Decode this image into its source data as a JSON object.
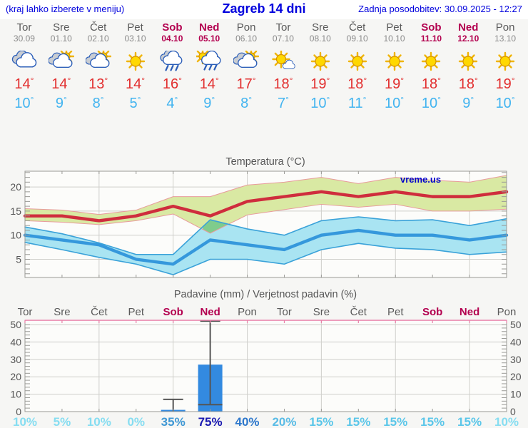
{
  "header": {
    "left_note": "(kraj lahko izberete v meniju)",
    "title": "Zagreb 14 dni",
    "updated": "Zadnja posodobitev: 30.09.2025 - 12:27"
  },
  "colors": {
    "accent_blue": "#0000dd",
    "tmax_red": "#e22e2e",
    "tmin_blue": "#42b4f0",
    "weekend": "#b3004f",
    "weekday": "#5a5a5a",
    "date_gray": "#8a8a8a",
    "watermark_blue": "#0000cc"
  },
  "days": [
    {
      "name": "Tor",
      "date": "30.09",
      "weekend": false,
      "icon": "cloudy",
      "tmax": 14,
      "tmin": 10,
      "precip_prob": 10
    },
    {
      "name": "Sre",
      "date": "01.10",
      "weekend": false,
      "icon": "partly",
      "tmax": 14,
      "tmin": 9,
      "precip_prob": 5
    },
    {
      "name": "Čet",
      "date": "02.10",
      "weekend": false,
      "icon": "partly",
      "tmax": 13,
      "tmin": 8,
      "precip_prob": 10
    },
    {
      "name": "Pet",
      "date": "03.10",
      "weekend": false,
      "icon": "sunny",
      "tmax": 14,
      "tmin": 5,
      "precip_prob": 0
    },
    {
      "name": "Sob",
      "date": "04.10",
      "weekend": true,
      "icon": "rain",
      "tmax": 16,
      "tmin": 4,
      "precip_prob": 35
    },
    {
      "name": "Ned",
      "date": "05.10",
      "weekend": true,
      "icon": "sun-rain",
      "tmax": 14,
      "tmin": 9,
      "precip_prob": 75
    },
    {
      "name": "Pon",
      "date": "06.10",
      "weekend": false,
      "icon": "partly",
      "tmax": 17,
      "tmin": 8,
      "precip_prob": 40
    },
    {
      "name": "Tor",
      "date": "07.10",
      "weekend": false,
      "icon": "mostly-sunny",
      "tmax": 18,
      "tmin": 7,
      "precip_prob": 20
    },
    {
      "name": "Sre",
      "date": "08.10",
      "weekend": false,
      "icon": "sunny",
      "tmax": 19,
      "tmin": 10,
      "precip_prob": 15
    },
    {
      "name": "Čet",
      "date": "09.10",
      "weekend": false,
      "icon": "sunny",
      "tmax": 18,
      "tmin": 11,
      "precip_prob": 15
    },
    {
      "name": "Pet",
      "date": "10.10",
      "weekend": false,
      "icon": "sunny",
      "tmax": 19,
      "tmin": 10,
      "precip_prob": 15
    },
    {
      "name": "Sob",
      "date": "11.10",
      "weekend": true,
      "icon": "sunny",
      "tmax": 18,
      "tmin": 10,
      "precip_prob": 15
    },
    {
      "name": "Ned",
      "date": "12.10",
      "weekend": true,
      "icon": "sunny",
      "tmax": 18,
      "tmin": 9,
      "precip_prob": 15
    },
    {
      "name": "Pon",
      "date": "13.10",
      "weekend": false,
      "icon": "sunny",
      "tmax": 19,
      "tmin": 10,
      "precip_prob": 10
    }
  ],
  "chart_data": [
    {
      "type": "line",
      "title": "Temperatura (°C)",
      "watermark": "vreme.us",
      "categories": [
        "Tor",
        "Sre",
        "Čet",
        "Pet",
        "Sob",
        "Ned",
        "Pon",
        "Tor",
        "Sre",
        "Čet",
        "Pet",
        "Sob",
        "Ned",
        "Pon"
      ],
      "yticks": [
        5,
        10,
        15,
        20
      ],
      "ylim": [
        1.2,
        23.3
      ],
      "grid": true,
      "series": [
        {
          "name": "max-temperature",
          "color": "#cf2d3d",
          "values": [
            14,
            14,
            13,
            14,
            16,
            14,
            17,
            18,
            19,
            18,
            19,
            18,
            18,
            19
          ],
          "band_upper": [
            15.5,
            15.2,
            14.3,
            15.2,
            18.0,
            18.0,
            20.4,
            21.0,
            22.0,
            20.7,
            22.0,
            21.4,
            21.0,
            22.4
          ],
          "band_lower": [
            13.0,
            12.7,
            12.2,
            13.0,
            14.4,
            10.4,
            14.2,
            15.3,
            16.4,
            15.8,
            16.4,
            15.0,
            15.0,
            15.4
          ],
          "band_fill": "#d9e9a3",
          "band_edge": "#e89b9b"
        },
        {
          "name": "min-temperature",
          "color": "#3598dc",
          "values": [
            10,
            9,
            8,
            5,
            4,
            9,
            8,
            7,
            10,
            11,
            10,
            10,
            9,
            10
          ],
          "band_upper": [
            11.7,
            10.3,
            8.4,
            6.0,
            6.0,
            13.2,
            11.3,
            10.0,
            13.0,
            13.8,
            13.0,
            13.2,
            12.0,
            13.4
          ],
          "band_lower": [
            8.5,
            7.0,
            5.4,
            4.0,
            1.8,
            5.0,
            5.0,
            4.0,
            7.0,
            8.3,
            7.3,
            7.0,
            6.0,
            6.5
          ],
          "band_fill": "#a9e4f2",
          "band_edge": "#3aa2d9"
        }
      ],
      "band_overlap_fill": "#7fcc8c"
    },
    {
      "type": "bar",
      "title": "Padavine (mm) / Verjetnost padavin (%)",
      "categories": [
        "Tor",
        "Sre",
        "Čet",
        "Pet",
        "Sob",
        "Ned",
        "Pon",
        "Tor",
        "Sre",
        "Čet",
        "Pet",
        "Sob",
        "Ned",
        "Pon"
      ],
      "weekend_flags": [
        false,
        false,
        false,
        false,
        true,
        true,
        false,
        false,
        false,
        false,
        false,
        true,
        true,
        false
      ],
      "yticks": [
        0,
        10,
        20,
        30,
        40,
        50
      ],
      "ylim": [
        0,
        52.5
      ],
      "bar_color": "#338ae0",
      "whisker_color": "#555555",
      "bars": [
        {
          "day_index": 4,
          "value": 1,
          "whisker_low": 0,
          "whisker_high": 7
        },
        {
          "day_index": 5,
          "value": 27,
          "whisker_low": 4,
          "whisker_high": 52
        }
      ],
      "probabilities": [
        10,
        5,
        10,
        0,
        35,
        75,
        40,
        20,
        15,
        15,
        15,
        15,
        15,
        10
      ],
      "prob_colors": {
        "0": "#86ddf1",
        "5": "#86ddf1",
        "10": "#86ddf1",
        "15": "#5ac6e9",
        "20": "#5abce6",
        "35": "#3e97d4",
        "40": "#2e78cc",
        "75": "#1818b0"
      }
    }
  ]
}
